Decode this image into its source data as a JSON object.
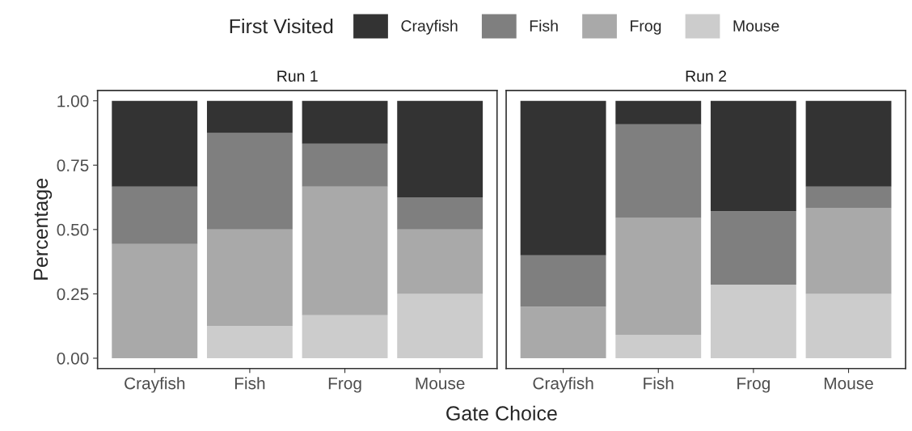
{
  "chart_data": [
    {
      "type": "bar",
      "title": "Run 1",
      "xlabel": "Gate Choice",
      "ylabel": "Percentage",
      "legend_title": "First Visited",
      "legend": "top",
      "stacked": true,
      "grid": false,
      "categories": [
        "Crayfish",
        "Fish",
        "Frog",
        "Mouse"
      ],
      "ylim": [
        -0.04,
        1.04
      ],
      "yticks": [
        {
          "value": 0,
          "label": "0.00"
        },
        {
          "value": 0.25,
          "label": "0.25"
        },
        {
          "value": 0.5,
          "label": "0.50"
        },
        {
          "value": 0.75,
          "label": "0.75"
        },
        {
          "value": 1,
          "label": "1.00"
        }
      ],
      "series": [
        {
          "name": "Mouse",
          "color": "#cccccc",
          "values": [
            0,
            0.125,
            0.167,
            0.25
          ]
        },
        {
          "name": "Frog",
          "color": "#a9a9a9",
          "values": [
            0.444,
            0.375,
            0.5,
            0.25
          ]
        },
        {
          "name": "Fish",
          "color": "#7f7f7f",
          "values": [
            0.223,
            0.375,
            0.166,
            0.125
          ]
        },
        {
          "name": "Crayfish",
          "color": "#333333",
          "values": [
            0.333,
            0.125,
            0.167,
            0.375
          ]
        }
      ]
    },
    {
      "type": "bar",
      "title": "Run 2",
      "stacked": true,
      "grid": false,
      "tick_labels": "x",
      "categories": [
        "Crayfish",
        "Fish",
        "Frog",
        "Mouse"
      ],
      "ylim": [
        -0.04,
        1.04
      ],
      "series": [
        {
          "name": "Mouse",
          "color": "#cccccc",
          "values": [
            0,
            0.091,
            0.286,
            0.25
          ]
        },
        {
          "name": "Frog",
          "color": "#a9a9a9",
          "values": [
            0.2,
            0.454,
            0,
            0.333
          ]
        },
        {
          "name": "Fish",
          "color": "#7f7f7f",
          "values": [
            0.2,
            0.364,
            0.285,
            0.084
          ]
        },
        {
          "name": "Crayfish",
          "color": "#333333",
          "values": [
            0.6,
            0.091,
            0.429,
            0.333
          ]
        }
      ]
    }
  ]
}
